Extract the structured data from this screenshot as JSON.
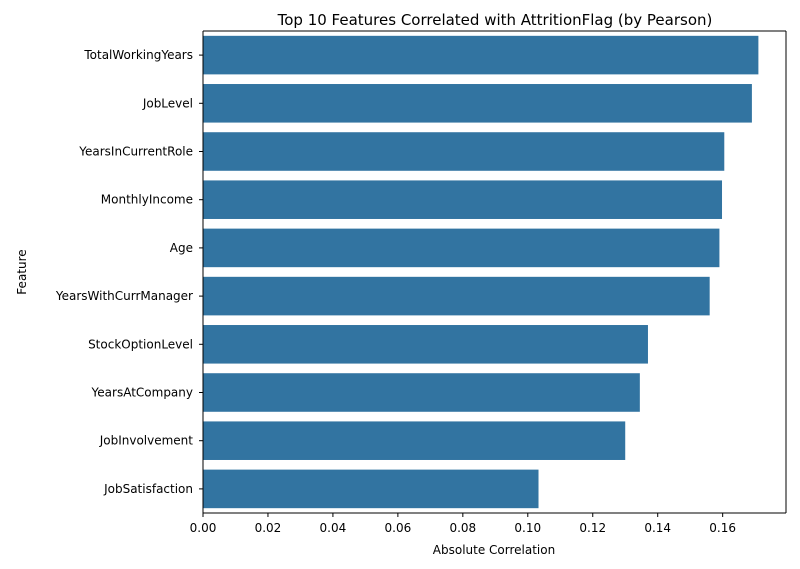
{
  "chart_data": {
    "type": "bar",
    "orientation": "horizontal",
    "title": "Top 10 Features Correlated with AttritionFlag (by Pearson)",
    "xlabel": "Absolute Correlation",
    "ylabel": "Feature",
    "categories": [
      "TotalWorkingYears",
      "JobLevel",
      "YearsInCurrentRole",
      "MonthlyIncome",
      "Age",
      "YearsWithCurrManager",
      "StockOptionLevel",
      "YearsAtCompany",
      "JobInvolvement",
      "JobSatisfaction"
    ],
    "values": [
      0.171,
      0.169,
      0.1605,
      0.1598,
      0.159,
      0.156,
      0.137,
      0.1345,
      0.13,
      0.1033
    ],
    "xlim": [
      0,
      0.1795
    ],
    "xticks": [
      "0.00",
      "0.02",
      "0.04",
      "0.06",
      "0.08",
      "0.10",
      "0.12",
      "0.14",
      "0.16"
    ],
    "bar_color": "#3274a1",
    "grid": false,
    "legend": false
  }
}
